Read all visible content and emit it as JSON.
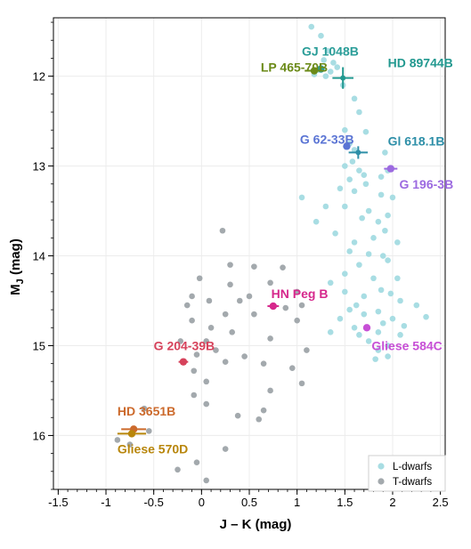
{
  "chart_data": {
    "type": "scatter",
    "xlabel": "J – K (mag)",
    "ylabel_main": "M",
    "ylabel_sub": "J",
    "ylabel_unit": " (mag)",
    "xlim": [
      -1.55,
      2.55
    ],
    "ylim": [
      16.6,
      11.35
    ],
    "y_inverted": true,
    "grid": true,
    "legend_position": "bottom-right",
    "x_ticks": [
      -1.5,
      -1,
      -0.5,
      0,
      0.5,
      1,
      1.5,
      2,
      2.5
    ],
    "x_tick_labels": [
      "-1.5",
      "-1",
      "-0.5",
      "0",
      "0.5",
      "1",
      "1.5",
      "2",
      "2.5"
    ],
    "y_ticks": [
      12,
      13,
      14,
      15,
      16
    ],
    "y_tick_labels": [
      "12",
      "13",
      "14",
      "15",
      "16"
    ],
    "series": [
      {
        "name": "L-dwarfs",
        "color": "#a8dde3",
        "points": [
          [
            1.15,
            11.45
          ],
          [
            1.25,
            11.55
          ],
          [
            1.32,
            11.72
          ],
          [
            1.28,
            11.82
          ],
          [
            1.38,
            11.85
          ],
          [
            1.22,
            11.93
          ],
          [
            1.18,
            11.98
          ],
          [
            1.3,
            12.0
          ],
          [
            1.42,
            11.9
          ],
          [
            1.35,
            11.95
          ],
          [
            1.48,
            12.1
          ],
          [
            1.6,
            12.25
          ],
          [
            1.65,
            12.4
          ],
          [
            1.5,
            12.6
          ],
          [
            1.72,
            12.62
          ],
          [
            1.55,
            12.75
          ],
          [
            1.6,
            12.82
          ],
          [
            1.58,
            12.95
          ],
          [
            1.5,
            13.0
          ],
          [
            1.65,
            13.05
          ],
          [
            1.7,
            13.1
          ],
          [
            1.92,
            12.85
          ],
          [
            1.95,
            13.05
          ],
          [
            1.88,
            13.12
          ],
          [
            1.55,
            13.15
          ],
          [
            1.72,
            13.2
          ],
          [
            1.45,
            13.25
          ],
          [
            1.6,
            13.28
          ],
          [
            1.05,
            13.35
          ],
          [
            1.88,
            13.32
          ],
          [
            2.0,
            13.35
          ],
          [
            1.3,
            13.45
          ],
          [
            1.5,
            13.45
          ],
          [
            1.75,
            13.5
          ],
          [
            1.95,
            13.55
          ],
          [
            1.2,
            13.62
          ],
          [
            1.68,
            13.58
          ],
          [
            1.85,
            13.62
          ],
          [
            1.4,
            13.75
          ],
          [
            1.92,
            13.72
          ],
          [
            1.8,
            13.8
          ],
          [
            1.6,
            13.85
          ],
          [
            2.05,
            13.85
          ],
          [
            1.55,
            13.95
          ],
          [
            1.75,
            13.98
          ],
          [
            1.9,
            14.0
          ],
          [
            1.65,
            14.1
          ],
          [
            1.95,
            14.05
          ],
          [
            1.5,
            14.2
          ],
          [
            1.8,
            14.25
          ],
          [
            1.35,
            14.3
          ],
          [
            2.05,
            14.25
          ],
          [
            1.5,
            14.4
          ],
          [
            1.88,
            14.38
          ],
          [
            1.7,
            14.45
          ],
          [
            1.98,
            14.42
          ],
          [
            1.62,
            14.55
          ],
          [
            2.08,
            14.5
          ],
          [
            1.55,
            14.6
          ],
          [
            1.85,
            14.62
          ],
          [
            2.25,
            14.55
          ],
          [
            1.45,
            14.7
          ],
          [
            1.7,
            14.65
          ],
          [
            2.0,
            14.7
          ],
          [
            2.35,
            14.68
          ],
          [
            1.6,
            14.8
          ],
          [
            1.9,
            14.75
          ],
          [
            2.12,
            14.78
          ],
          [
            1.35,
            14.85
          ],
          [
            1.65,
            14.88
          ],
          [
            1.85,
            14.85
          ],
          [
            2.08,
            14.88
          ],
          [
            1.75,
            14.95
          ],
          [
            1.95,
            15.0
          ],
          [
            1.85,
            15.05
          ],
          [
            1.95,
            15.12
          ],
          [
            1.82,
            15.15
          ]
        ]
      },
      {
        "name": "T-dwarfs",
        "color": "#a3a9ad",
        "points": [
          [
            0.22,
            13.72
          ],
          [
            0.3,
            14.1
          ],
          [
            0.55,
            14.12
          ],
          [
            -0.02,
            14.25
          ],
          [
            0.85,
            14.13
          ],
          [
            0.3,
            14.32
          ],
          [
            0.72,
            14.3
          ],
          [
            -0.1,
            14.45
          ],
          [
            0.5,
            14.45
          ],
          [
            0.4,
            14.5
          ],
          [
            1.0,
            14.4
          ],
          [
            0.08,
            14.5
          ],
          [
            -0.15,
            14.55
          ],
          [
            1.05,
            14.55
          ],
          [
            0.88,
            14.58
          ],
          [
            0.25,
            14.65
          ],
          [
            0.55,
            14.65
          ],
          [
            -0.1,
            14.72
          ],
          [
            0.1,
            14.8
          ],
          [
            1.0,
            14.72
          ],
          [
            0.32,
            14.85
          ],
          [
            -0.22,
            14.95
          ],
          [
            0.05,
            14.95
          ],
          [
            0.72,
            14.92
          ],
          [
            0.15,
            15.05
          ],
          [
            -0.05,
            15.1
          ],
          [
            0.45,
            15.12
          ],
          [
            1.1,
            15.05
          ],
          [
            0.25,
            15.18
          ],
          [
            -0.08,
            15.28
          ],
          [
            0.65,
            15.2
          ],
          [
            0.95,
            15.25
          ],
          [
            0.05,
            15.4
          ],
          [
            0.72,
            15.5
          ],
          [
            -0.08,
            15.55
          ],
          [
            1.05,
            15.42
          ],
          [
            0.05,
            15.65
          ],
          [
            -0.6,
            15.7
          ],
          [
            0.65,
            15.72
          ],
          [
            0.38,
            15.78
          ],
          [
            0.6,
            15.82
          ],
          [
            -0.55,
            15.95
          ],
          [
            -0.88,
            16.05
          ],
          [
            0.25,
            16.15
          ],
          [
            -0.75,
            16.1
          ],
          [
            -0.05,
            16.3
          ],
          [
            -0.25,
            16.38
          ],
          [
            0.05,
            16.5
          ]
        ]
      }
    ],
    "highlighted_objects": [
      {
        "label": "GJ 1048B",
        "x": 1.25,
        "y": 11.92,
        "color": "#2a9d98",
        "marker": "circle",
        "label_x": 1.05,
        "label_y": 11.72
      },
      {
        "label": "HD 89744B",
        "x": 1.48,
        "y": 12.02,
        "color": "#21988f",
        "marker": "cross",
        "xerr": 0.11,
        "yerr": 0.12,
        "label_x": 1.95,
        "label_y": 11.85
      },
      {
        "label": "LP 465-70B",
        "x": 1.18,
        "y": 11.94,
        "color": "#6b8a18",
        "marker": "circle",
        "xerr": 0.1,
        "label_x": 0.62,
        "label_y": 11.9
      },
      {
        "label": "G 62-33B",
        "x": 1.52,
        "y": 12.78,
        "color": "#5a74d4",
        "marker": "circle",
        "label_x": 1.03,
        "label_y": 12.7
      },
      {
        "label": "Gl 618.1B",
        "x": 1.64,
        "y": 12.85,
        "color": "#2e8fa8",
        "marker": "cross",
        "xerr": 0.1,
        "yerr": 0.07,
        "label_x": 1.95,
        "label_y": 12.72
      },
      {
        "label": "G 196-3B",
        "x": 1.98,
        "y": 13.03,
        "color": "#9c6ae0",
        "marker": "circle",
        "xerr": 0.07,
        "label_x": 2.07,
        "label_y": 13.2
      },
      {
        "label": "HN Peg B",
        "x": 0.75,
        "y": 14.56,
        "color": "#d6288c",
        "marker": "circle",
        "xerr": 0.06,
        "label_x": 0.73,
        "label_y": 14.42
      },
      {
        "label": "Gliese 584C",
        "x": 1.73,
        "y": 14.8,
        "color": "#c74fd6",
        "marker": "circle",
        "label_x": 1.78,
        "label_y": 15.0
      },
      {
        "label": "G 204-39B",
        "x": -0.19,
        "y": 15.18,
        "color": "#d6425b",
        "marker": "circle",
        "xerr": 0.05,
        "label_x": -0.5,
        "label_y": 15.0
      },
      {
        "label": "HD 3651B",
        "x": -0.71,
        "y": 15.93,
        "color": "#cc6a2c",
        "marker": "circle",
        "xerr": 0.13,
        "label_x": -0.88,
        "label_y": 15.73
      },
      {
        "label": "Gliese 570D",
        "x": -0.73,
        "y": 15.98,
        "color": "#b8860b",
        "marker": "circle",
        "xerr": 0.15,
        "label_x": -0.88,
        "label_y": 16.15
      }
    ]
  }
}
